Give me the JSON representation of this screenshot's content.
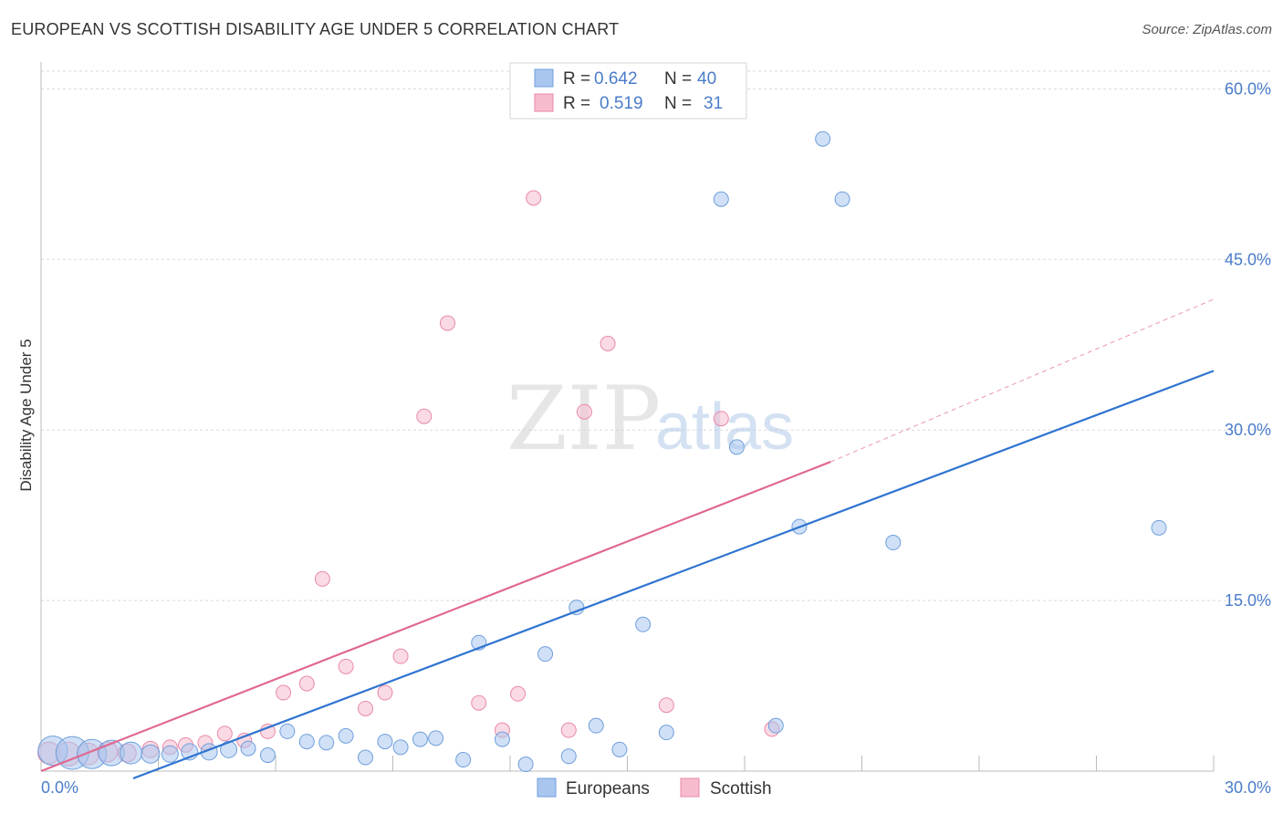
{
  "header": {
    "title": "EUROPEAN VS SCOTTISH DISABILITY AGE UNDER 5 CORRELATION CHART",
    "source": "Source: ZipAtlas.com"
  },
  "watermark": {
    "zip": "ZIP",
    "atlas": "atlas"
  },
  "colors": {
    "blue_fill": "#a9c6ef",
    "blue_stroke": "#6f9fdc",
    "blue_line": "#2f74d0",
    "pink_fill": "#f6bccd",
    "pink_stroke": "#e98aa8",
    "pink_line": "#e06890",
    "axis_text": "#4a7cc9",
    "grid": "#d9d9d9"
  },
  "legend": {
    "rows": [
      {
        "r_label": "R =",
        "r_value": "0.642",
        "n_label": "N =",
        "n_value": "40"
      },
      {
        "r_label": "R =",
        "r_value": "0.519",
        "n_label": "N =",
        "n_value": "31"
      }
    ]
  },
  "bottom_legend": {
    "europeans": "Europeans",
    "scottish": "Scottish"
  },
  "chart_data": {
    "type": "scatter",
    "title": "EUROPEAN VS SCOTTISH DISABILITY AGE UNDER 5 CORRELATION CHART",
    "xlabel": "",
    "ylabel": "Disability Age Under 5",
    "xlim": [
      0,
      30
    ],
    "ylim": [
      0,
      63
    ],
    "x_tick_labels": [
      "0.0%",
      "30.0%"
    ],
    "y_ticks": [
      15,
      30,
      45,
      60
    ],
    "y_tick_labels": [
      "15.0%",
      "30.0%",
      "45.0%",
      "60.0%"
    ],
    "series": [
      {
        "name": "Europeans",
        "r": 0.642,
        "n": 40,
        "trend": {
          "x0": 0,
          "y0": -3.0,
          "x1": 30,
          "y1": 35.2
        },
        "points": [
          [
            0.3,
            1.8,
            16
          ],
          [
            0.8,
            1.6,
            18
          ],
          [
            1.3,
            1.5,
            16
          ],
          [
            1.8,
            1.6,
            14
          ],
          [
            2.3,
            1.6,
            12
          ],
          [
            2.8,
            1.5,
            10
          ],
          [
            3.3,
            1.5,
            9
          ],
          [
            3.8,
            1.7,
            9
          ],
          [
            4.3,
            1.7,
            9
          ],
          [
            4.8,
            1.9,
            9
          ],
          [
            5.3,
            2.0,
            8
          ],
          [
            5.8,
            1.4,
            8
          ],
          [
            6.3,
            3.5,
            8
          ],
          [
            6.8,
            2.6,
            8
          ],
          [
            7.3,
            2.5,
            8
          ],
          [
            7.8,
            3.1,
            8
          ],
          [
            8.3,
            1.2,
            8
          ],
          [
            8.8,
            2.6,
            8
          ],
          [
            9.2,
            2.1,
            8
          ],
          [
            9.7,
            2.8,
            8
          ],
          [
            10.1,
            2.9,
            8
          ],
          [
            10.8,
            1.0,
            8
          ],
          [
            11.2,
            11.3,
            8
          ],
          [
            11.8,
            2.8,
            8
          ],
          [
            12.4,
            0.6,
            8
          ],
          [
            12.9,
            10.3,
            8
          ],
          [
            13.5,
            1.3,
            8
          ],
          [
            13.7,
            14.4,
            8
          ],
          [
            14.2,
            4.0,
            8
          ],
          [
            14.8,
            1.9,
            8
          ],
          [
            15.4,
            12.9,
            8
          ],
          [
            16.0,
            3.4,
            8
          ],
          [
            17.4,
            50.3,
            8
          ],
          [
            17.8,
            28.5,
            8
          ],
          [
            18.8,
            4.0,
            8
          ],
          [
            19.4,
            21.5,
            8
          ],
          [
            20.0,
            55.6,
            8
          ],
          [
            20.5,
            50.3,
            8
          ],
          [
            21.8,
            20.1,
            8
          ],
          [
            28.6,
            21.4,
            8
          ]
        ]
      },
      {
        "name": "Scottish",
        "r": 0.519,
        "n": 31,
        "trend": {
          "x0": 0,
          "y0": 0.0,
          "x1": 20.2,
          "y1": 27.2,
          "dash_x1": 30,
          "dash_y1": 41.5
        },
        "points": [
          [
            0.2,
            1.6,
            12
          ],
          [
            0.7,
            1.5,
            13
          ],
          [
            1.2,
            1.5,
            12
          ],
          [
            1.7,
            1.7,
            11
          ],
          [
            2.2,
            1.6,
            10
          ],
          [
            2.8,
            1.9,
            9
          ],
          [
            3.3,
            2.1,
            8
          ],
          [
            3.7,
            2.3,
            8
          ],
          [
            4.2,
            2.5,
            8
          ],
          [
            4.7,
            3.3,
            8
          ],
          [
            5.2,
            2.7,
            8
          ],
          [
            5.8,
            3.5,
            8
          ],
          [
            6.2,
            6.9,
            8
          ],
          [
            6.8,
            7.7,
            8
          ],
          [
            7.2,
            16.9,
            8
          ],
          [
            7.8,
            9.2,
            8
          ],
          [
            8.3,
            5.5,
            8
          ],
          [
            8.8,
            6.9,
            8
          ],
          [
            9.2,
            10.1,
            8
          ],
          [
            9.8,
            31.2,
            8
          ],
          [
            10.4,
            39.4,
            8
          ],
          [
            11.2,
            6.0,
            8
          ],
          [
            11.8,
            3.6,
            8
          ],
          [
            12.2,
            6.8,
            8
          ],
          [
            12.6,
            50.4,
            8
          ],
          [
            13.5,
            3.6,
            8
          ],
          [
            13.9,
            31.6,
            8
          ],
          [
            14.5,
            37.6,
            8
          ],
          [
            16.0,
            5.8,
            8
          ],
          [
            17.4,
            31.0,
            8
          ],
          [
            18.7,
            3.7,
            8
          ]
        ]
      }
    ]
  }
}
